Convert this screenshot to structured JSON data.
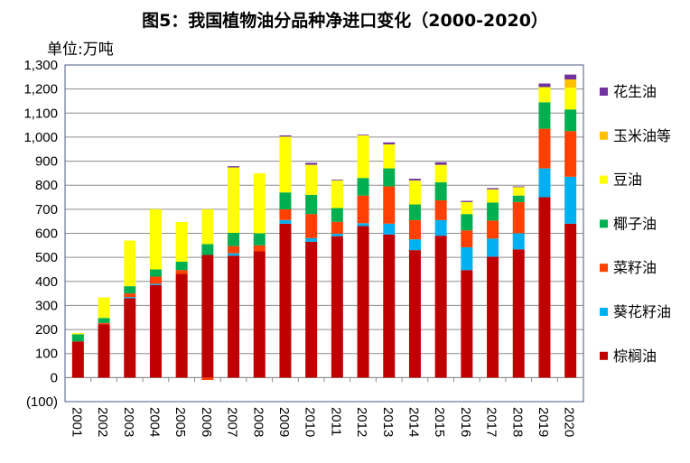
{
  "chart_data": {
    "type": "bar",
    "stacked": true,
    "title": "图5：我国植物油分品种净进口变化（2000-2020）",
    "ylabel": "单位:万吨",
    "ylim": [
      -100,
      1300
    ],
    "yticks": [
      "(100)",
      "0",
      "100",
      "200",
      "300",
      "400",
      "500",
      "600",
      "700",
      "800",
      "900",
      "1,000",
      "1,100",
      "1,200",
      "1,300"
    ],
    "grid": true,
    "legend_position": "right",
    "categories": [
      "2001",
      "2002",
      "2003",
      "2004",
      "2005",
      "2006",
      "2007",
      "2008",
      "2009",
      "2010",
      "2011",
      "2012",
      "2013",
      "2014",
      "2015",
      "2016",
      "2017",
      "2018",
      "2019",
      "2020"
    ],
    "series": [
      {
        "name": "棕榈油",
        "color": "#C00000",
        "values": [
          150,
          222,
          330,
          385,
          432,
          510,
          507,
          525,
          640,
          565,
          588,
          630,
          595,
          530,
          590,
          447,
          503,
          533,
          750,
          640
        ]
      },
      {
        "name": "葵花籽油",
        "color": "#00B0F0",
        "values": [
          0,
          0,
          5,
          5,
          0,
          0,
          10,
          0,
          15,
          15,
          10,
          12,
          45,
          45,
          65,
          95,
          75,
          67,
          120,
          195
        ]
      },
      {
        "name": "菜籽油",
        "color": "#FF4000",
        "values": [
          0,
          5,
          15,
          30,
          15,
          -10,
          30,
          25,
          45,
          100,
          50,
          115,
          155,
          80,
          82,
          70,
          75,
          130,
          165,
          190
        ]
      },
      {
        "name": "椰子油",
        "color": "#00B050",
        "values": [
          30,
          21,
          30,
          30,
          35,
          45,
          55,
          50,
          70,
          80,
          57,
          73,
          75,
          65,
          75,
          68,
          75,
          27,
          110,
          90
        ]
      },
      {
        "name": "豆油",
        "color": "#FFFF00",
        "values": [
          5,
          85,
          190,
          250,
          165,
          145,
          272,
          250,
          232,
          125,
          115,
          177,
          100,
          100,
          73,
          50,
          55,
          35,
          63,
          90
        ]
      },
      {
        "name": "玉米油等",
        "color": "#FFC000",
        "values": [
          0,
          0,
          0,
          0,
          0,
          0,
          0,
          0,
          0,
          0,
          0,
          0,
          0,
          0,
          0,
          0,
          0,
          0,
          0,
          35
        ]
      },
      {
        "name": "花生油",
        "color": "#7030A0",
        "values": [
          0,
          0,
          0,
          0,
          0,
          0,
          5,
          0,
          5,
          8,
          3,
          3,
          8,
          7,
          10,
          5,
          5,
          3,
          15,
          20
        ]
      }
    ]
  }
}
